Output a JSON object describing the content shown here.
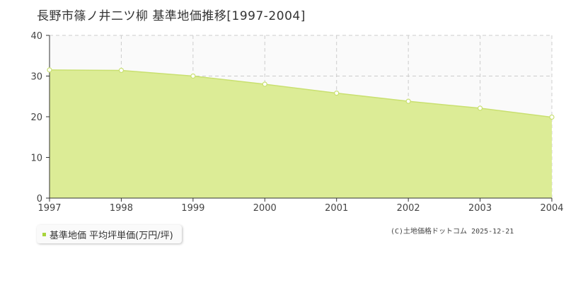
{
  "chart_data": {
    "type": "area",
    "title": "長野市篠ノ井二ツ柳 基準地価推移[1997-2004]",
    "categories": [
      "1997",
      "1998",
      "1999",
      "2000",
      "2001",
      "2002",
      "2003",
      "2004"
    ],
    "y_ticks": [
      "0",
      "10",
      "20",
      "30",
      "40"
    ],
    "ylim": [
      0,
      40
    ],
    "series": [
      {
        "name": "基準地価 平均坪単価(万円/坪)",
        "values": [
          31.5,
          31.4,
          30.0,
          28.0,
          25.8,
          23.8,
          22.1,
          19.9
        ]
      }
    ],
    "grid": true,
    "legend": "bottom-left",
    "colors": {
      "fill": "#dcec96",
      "line": "#c9e070",
      "marker": "#a8d43b",
      "grid": "#cccccc",
      "axis": "#333333"
    }
  },
  "copyright": "(C)土地価格ドットコム 2025-12-21"
}
